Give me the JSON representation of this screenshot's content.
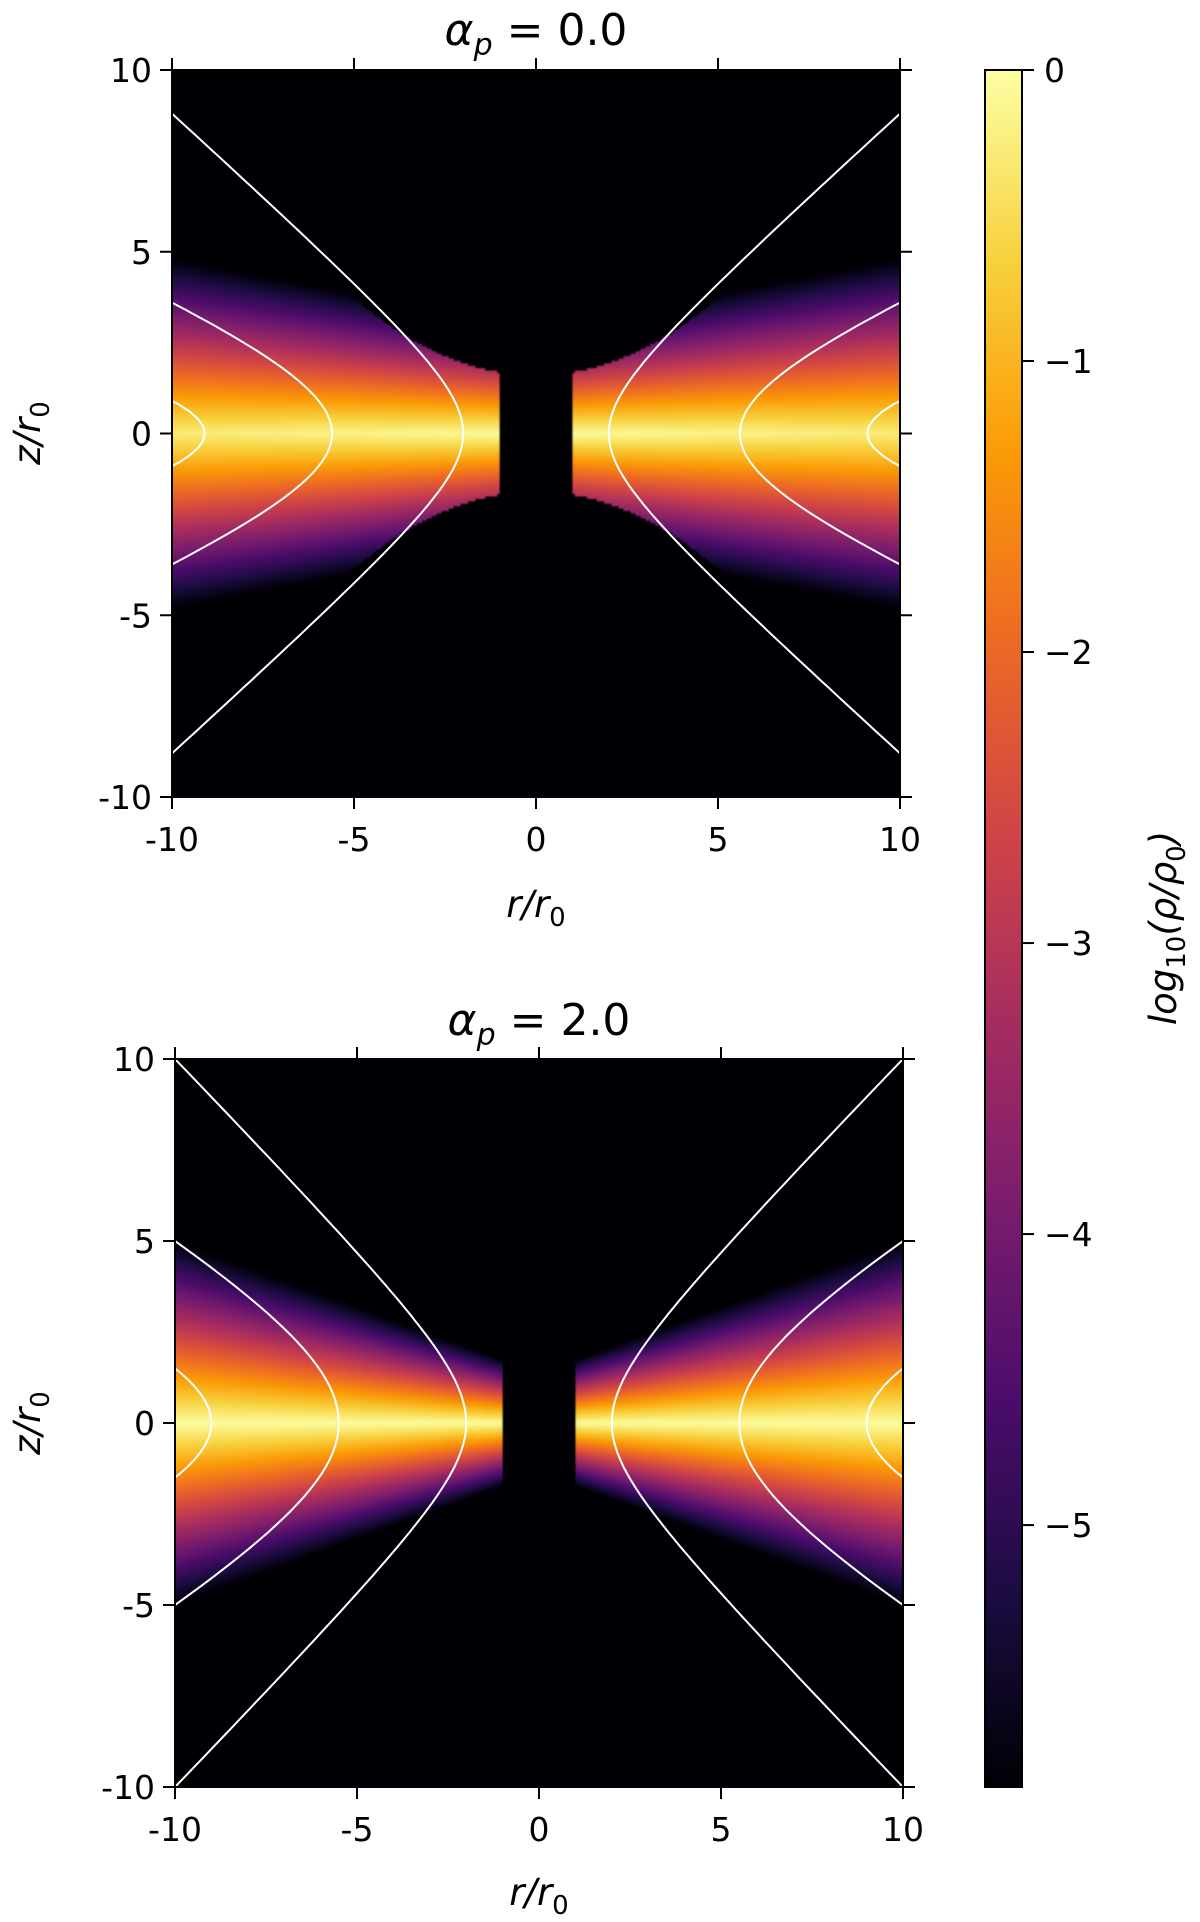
{
  "chart_data": [
    {
      "type": "heatmap",
      "title": "α_p = 0.0",
      "title_math": {
        "base": "α",
        "sub": "p",
        "rest": " = 0.0"
      },
      "xlabel": {
        "base": "r/r",
        "sub": "0"
      },
      "ylabel": {
        "base": "z/r",
        "sub": "0"
      },
      "xlim": [
        -10,
        10
      ],
      "ylim": [
        -10,
        10
      ],
      "xticks": [
        -10,
        -5,
        0,
        5,
        10
      ],
      "xtick_labels": [
        "-10",
        "-5",
        "0",
        "5",
        "10"
      ],
      "yticks": [
        -10,
        -5,
        0,
        5,
        10
      ],
      "ytick_labels": [
        "-10",
        "-5",
        "0",
        "5",
        "10"
      ],
      "alpha_p": 0.0,
      "grid": false,
      "inner_radius": 1.0,
      "contour_color": "#ffffff",
      "contours": [
        {
          "r_at_midplane": 9.1,
          "z_at_edge": 0.9
        },
        {
          "r_at_midplane": 5.6,
          "z_at_edge": 3.6
        },
        {
          "r_at_midplane": 2.0,
          "z_at_edge": 8.8
        }
      ]
    },
    {
      "type": "heatmap",
      "title": "α_p = 2.0",
      "title_math": {
        "base": "α",
        "sub": "p",
        "rest": " = 2.0"
      },
      "xlabel": {
        "base": "r/r",
        "sub": "0"
      },
      "ylabel": {
        "base": "z/r",
        "sub": "0"
      },
      "xlim": [
        -10,
        10
      ],
      "ylim": [
        -10,
        10
      ],
      "xticks": [
        -10,
        -5,
        0,
        5,
        10
      ],
      "xtick_labels": [
        "-10",
        "-5",
        "0",
        "5",
        "10"
      ],
      "yticks": [
        -10,
        -5,
        0,
        5,
        10
      ],
      "ytick_labels": [
        "-10",
        "-5",
        "0",
        "5",
        "10"
      ],
      "alpha_p": 2.0,
      "grid": false,
      "inner_radius": 1.0,
      "contour_color": "#ffffff",
      "contours": [
        {
          "r_at_midplane": 9.0,
          "z_at_edge": 1.5
        },
        {
          "r_at_midplane": 5.5,
          "z_at_edge": 5.0
        },
        {
          "r_at_midplane": 2.0,
          "z_at_edge": 10.0
        }
      ]
    }
  ],
  "colorbar": {
    "label": {
      "pre": "log",
      "sub": "10",
      "post": "(ρ/ρ",
      "sub2": "0",
      "end": ")"
    },
    "colormap": "inferno",
    "range": [
      -5.9,
      0
    ],
    "ticks": [
      0,
      -1,
      -2,
      -3,
      -4,
      -5
    ],
    "tick_labels": [
      "0",
      "−1",
      "−2",
      "−3",
      "−4",
      "−5"
    ],
    "stops": [
      "#000004",
      "#1b0c41",
      "#4a0c6b",
      "#781c6d",
      "#a52c60",
      "#cf4446",
      "#ed6925",
      "#fb9b06",
      "#f7d13d",
      "#fcffa4"
    ]
  }
}
